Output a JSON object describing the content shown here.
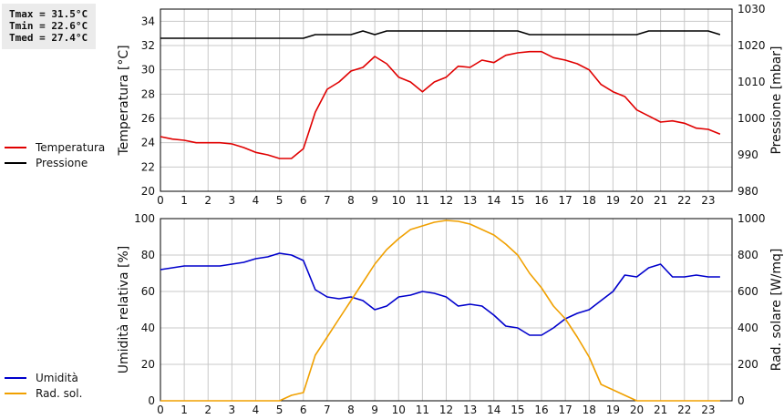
{
  "stats": {
    "tmax": "Tmax = 31.5°C",
    "tmin": "Tmin = 22.6°C",
    "tmed": "Tmed = 27.4°C"
  },
  "chart_data": [
    {
      "type": "line",
      "xlim": [
        0,
        24
      ],
      "x_ticks": [
        "0",
        "1",
        "2",
        "3",
        "4",
        "5",
        "6",
        "7",
        "8",
        "9",
        "10",
        "11",
        "12",
        "13",
        "14",
        "15",
        "16",
        "17",
        "18",
        "19",
        "20",
        "21",
        "22",
        "23"
      ],
      "ylabel": "Temperatura [°C]",
      "ylim": [
        20,
        35
      ],
      "y_ticks": [
        "20",
        "22",
        "24",
        "26",
        "28",
        "30",
        "32",
        "34"
      ],
      "y2label": "Pressione [mbar]",
      "y2lim": [
        980,
        1030
      ],
      "y2_ticks": [
        "980",
        "990",
        "1000",
        "1010",
        "1020",
        "1030"
      ],
      "grid": true,
      "legend_position": "left",
      "series": [
        {
          "name": "Temperatura",
          "axis": "left",
          "color": "#e00000",
          "x": [
            0,
            0.5,
            1,
            1.5,
            2,
            2.5,
            3,
            3.5,
            4,
            4.5,
            5,
            5.5,
            6,
            6.5,
            7,
            7.5,
            8,
            8.5,
            9,
            9.5,
            10,
            10.5,
            11,
            11.5,
            12,
            12.5,
            13,
            13.5,
            14,
            14.5,
            15,
            15.5,
            16,
            16.5,
            17,
            17.5,
            18,
            18.5,
            19,
            19.5,
            20,
            20.5,
            21,
            21.5,
            22,
            22.5,
            23,
            23.5
          ],
          "values": [
            24.5,
            24.3,
            24.2,
            24.0,
            24.0,
            24.0,
            23.9,
            23.6,
            23.2,
            23.0,
            22.7,
            22.7,
            23.5,
            26.5,
            28.4,
            29.0,
            29.9,
            30.2,
            31.1,
            30.5,
            29.4,
            29.0,
            28.2,
            29.0,
            29.4,
            30.3,
            30.2,
            30.8,
            30.6,
            31.2,
            31.4,
            31.5,
            31.5,
            31.0,
            30.8,
            30.5,
            30.0,
            28.8,
            28.2,
            27.8,
            26.7,
            26.2,
            25.7,
            25.8,
            25.6,
            25.2,
            25.1,
            24.7
          ]
        },
        {
          "name": "Pressione",
          "axis": "right",
          "color": "#000000",
          "x": [
            0,
            6,
            6.5,
            8,
            8.5,
            9,
            9.5,
            15,
            15.5,
            20,
            20.5,
            23,
            23.5
          ],
          "values": [
            1022,
            1022,
            1023,
            1023,
            1024,
            1023,
            1024,
            1024,
            1023,
            1023,
            1024,
            1024,
            1023
          ]
        }
      ]
    },
    {
      "type": "line",
      "xlim": [
        0,
        24
      ],
      "x_ticks": [
        "0",
        "1",
        "2",
        "3",
        "4",
        "5",
        "6",
        "7",
        "8",
        "9",
        "10",
        "11",
        "12",
        "13",
        "14",
        "15",
        "16",
        "17",
        "18",
        "19",
        "20",
        "21",
        "22",
        "23"
      ],
      "ylabel": "Umidità relativa [%]",
      "ylim": [
        0,
        100
      ],
      "y_ticks": [
        "0",
        "20",
        "40",
        "60",
        "80",
        "100"
      ],
      "y2label": "Rad. solare [W/mq]",
      "y2lim": [
        0,
        1000
      ],
      "y2_ticks": [
        "0",
        "200",
        "400",
        "600",
        "800",
        "1000"
      ],
      "grid": true,
      "legend_position": "left",
      "series": [
        {
          "name": "Umidità",
          "axis": "left",
          "color": "#0000cc",
          "x": [
            0,
            0.5,
            1,
            1.5,
            2,
            2.5,
            3,
            3.5,
            4,
            4.5,
            5,
            5.5,
            6,
            6.5,
            7,
            7.5,
            8,
            8.5,
            9,
            9.5,
            10,
            10.5,
            11,
            11.5,
            12,
            12.5,
            13,
            13.5,
            14,
            14.5,
            15,
            15.5,
            16,
            16.5,
            17,
            17.5,
            18,
            18.5,
            19,
            19.5,
            20,
            20.5,
            21,
            21.5,
            22,
            22.5,
            23,
            23.5
          ],
          "values": [
            72,
            73,
            74,
            74,
            74,
            74,
            75,
            76,
            78,
            79,
            81,
            80,
            77,
            61,
            57,
            56,
            57,
            55,
            50,
            52,
            57,
            58,
            60,
            59,
            57,
            52,
            53,
            52,
            47,
            41,
            40,
            36,
            36,
            40,
            45,
            48,
            50,
            55,
            60,
            69,
            68,
            73,
            75,
            68,
            68,
            69,
            68,
            68
          ]
        },
        {
          "name": "Rad. sol.",
          "axis": "right",
          "color": "#f0a000",
          "x": [
            0,
            5,
            5.5,
            6,
            6.5,
            7,
            7.5,
            8,
            8.5,
            9,
            9.5,
            10,
            10.5,
            11,
            11.5,
            12,
            12.5,
            13,
            13.5,
            14,
            14.5,
            15,
            15.5,
            16,
            16.5,
            17,
            17.5,
            18,
            18.5,
            19,
            19.5,
            20,
            23.5
          ],
          "values": [
            0,
            0,
            30,
            45,
            250,
            350,
            450,
            550,
            650,
            750,
            830,
            890,
            940,
            960,
            980,
            990,
            985,
            970,
            940,
            910,
            860,
            800,
            700,
            620,
            520,
            450,
            350,
            240,
            90,
            60,
            30,
            0,
            0
          ]
        }
      ]
    }
  ]
}
